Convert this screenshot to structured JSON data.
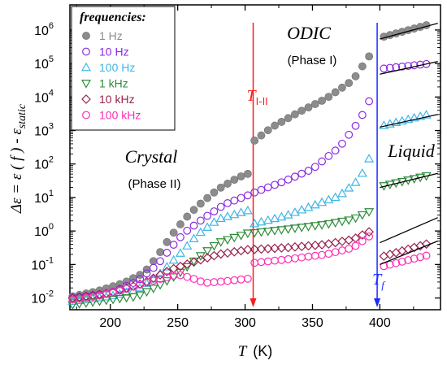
{
  "chart_data": {
    "type": "scatter",
    "xlabel_symbol": "T",
    "xlabel_unit": "(K)",
    "ylabel": "Δε = ε ( f ) - ε",
    "ylabel_sub": "static",
    "xlim": [
      170,
      445
    ],
    "ylim_log10": [
      -2.35,
      6.75
    ],
    "y_scale": "log",
    "x_ticks": [
      200,
      250,
      300,
      350,
      400
    ],
    "y_ticks": [
      {
        "exp": -2,
        "label_base": "10",
        "label_exp": "-2"
      },
      {
        "exp": -1,
        "label_base": "10",
        "label_exp": "-1"
      },
      {
        "exp": 0,
        "label_base": "10",
        "label_exp": "0"
      },
      {
        "exp": 1,
        "label_base": "10",
        "label_exp": "1"
      },
      {
        "exp": 2,
        "label_base": "10",
        "label_exp": "2"
      },
      {
        "exp": 3,
        "label_base": "10",
        "label_exp": "3"
      },
      {
        "exp": 4,
        "label_base": "10",
        "label_exp": "4"
      },
      {
        "exp": 5,
        "label_base": "10",
        "label_exp": "5"
      },
      {
        "exp": 6,
        "label_base": "10",
        "label_exp": "6"
      }
    ],
    "legend_title": "frequencies:",
    "legend_position": "top-left",
    "series": [
      {
        "name": "1 Hz",
        "marker": "filled-circle",
        "color": "#8c8c8c",
        "segments": [
          {
            "x_start": 172,
            "x_end": 303,
            "x_step": 5,
            "curve": [
              [
                172,
                -1.95
              ],
              [
                190,
                -1.8
              ],
              [
                210,
                -1.55
              ],
              [
                225,
                -1.25
              ],
              [
                235,
                -0.75
              ],
              [
                245,
                -0.15
              ],
              [
                255,
                0.35
              ],
              [
                265,
                0.75
              ],
              [
                280,
                1.25
              ],
              [
                295,
                1.6
              ],
              [
                303,
                1.72
              ]
            ]
          },
          {
            "x_start": 307,
            "x_end": 396,
            "x_step": 5,
            "curve": [
              [
                307,
                2.7
              ],
              [
                320,
                3.1
              ],
              [
                340,
                3.55
              ],
              [
                360,
                3.95
              ],
              [
                380,
                4.5
              ],
              [
                396,
                5.45
              ]
            ]
          },
          {
            "x_start": 403,
            "x_end": 438,
            "x_step": 4.5,
            "curve": [
              [
                403,
                5.8
              ],
              [
                438,
                6.18
              ]
            ]
          }
        ]
      },
      {
        "name": "10 Hz",
        "marker": "circle",
        "color": "#8a2be2",
        "segments": [
          {
            "x_start": 172,
            "x_end": 303,
            "x_step": 5,
            "curve": [
              [
                172,
                -2.0
              ],
              [
                200,
                -1.85
              ],
              [
                220,
                -1.5
              ],
              [
                235,
                -1.0
              ],
              [
                245,
                -0.5
              ],
              [
                255,
                -0.05
              ],
              [
                270,
                0.4
              ],
              [
                285,
                0.8
              ],
              [
                303,
                1.08
              ]
            ]
          },
          {
            "x_start": 307,
            "x_end": 396,
            "x_step": 5,
            "curve": [
              [
                307,
                1.15
              ],
              [
                330,
                1.5
              ],
              [
                350,
                1.85
              ],
              [
                370,
                2.5
              ],
              [
                385,
                3.3
              ],
              [
                396,
                4.2
              ]
            ]
          },
          {
            "x_start": 403,
            "x_end": 438,
            "x_step": 4.5,
            "curve": [
              [
                403,
                4.85
              ],
              [
                438,
                5.0
              ]
            ]
          }
        ]
      },
      {
        "name": "100 Hz",
        "marker": "triangle-up",
        "color": "#3fb5e5",
        "segments": [
          {
            "x_start": 172,
            "x_end": 303,
            "x_step": 5,
            "curve": [
              [
                172,
                -2.1
              ],
              [
                200,
                -1.95
              ],
              [
                220,
                -1.75
              ],
              [
                235,
                -1.35
              ],
              [
                250,
                -0.75
              ],
              [
                265,
                -0.1
              ],
              [
                280,
                0.35
              ],
              [
                303,
                0.62
              ]
            ]
          },
          {
            "x_start": 307,
            "x_end": 396,
            "x_step": 5,
            "curve": [
              [
                307,
                0.22
              ],
              [
                330,
                0.45
              ],
              [
                350,
                0.75
              ],
              [
                370,
                1.05
              ],
              [
                385,
                1.55
              ],
              [
                396,
                2.5
              ]
            ]
          },
          {
            "x_start": 403,
            "x_end": 438,
            "x_step": 4.5,
            "curve": [
              [
                403,
                3.15
              ],
              [
                438,
                3.5
              ]
            ]
          }
        ]
      },
      {
        "name": "1 kHz",
        "marker": "triangle-down",
        "color": "#2e8b3a",
        "segments": [
          {
            "x_start": 172,
            "x_end": 303,
            "x_step": 5,
            "curve": [
              [
                172,
                -2.2
              ],
              [
                200,
                -2.05
              ],
              [
                220,
                -1.95
              ],
              [
                235,
                -1.65
              ],
              [
                250,
                -1.3
              ],
              [
                265,
                -0.8
              ],
              [
                280,
                -0.35
              ],
              [
                303,
                -0.05
              ]
            ]
          },
          {
            "x_start": 307,
            "x_end": 396,
            "x_step": 5,
            "curve": [
              [
                307,
                -0.05
              ],
              [
                330,
                0.05
              ],
              [
                360,
                0.2
              ],
              [
                380,
                0.35
              ],
              [
                396,
                0.65
              ]
            ]
          },
          {
            "x_start": 403,
            "x_end": 438,
            "x_step": 4.5,
            "curve": [
              [
                403,
                1.35
              ],
              [
                438,
                1.68
              ]
            ]
          }
        ]
      },
      {
        "name": "10 kHz",
        "marker": "diamond",
        "color": "#99214f",
        "segments": [
          {
            "x_start": 172,
            "x_end": 303,
            "x_step": 5,
            "curve": [
              [
                172,
                -2.0
              ],
              [
                200,
                -1.85
              ],
              [
                225,
                -1.55
              ],
              [
                245,
                -1.15
              ],
              [
                260,
                -0.95
              ],
              [
                280,
                -0.7
              ],
              [
                303,
                -0.55
              ]
            ]
          },
          {
            "x_start": 307,
            "x_end": 396,
            "x_step": 5,
            "curve": [
              [
                307,
                -0.55
              ],
              [
                330,
                -0.5
              ],
              [
                360,
                -0.4
              ],
              [
                380,
                -0.25
              ],
              [
                396,
                0.05
              ]
            ]
          },
          {
            "x_start": 403,
            "x_end": 438,
            "x_step": 4.5,
            "curve": [
              [
                403,
                -0.75
              ],
              [
                438,
                -0.35
              ]
            ]
          }
        ]
      },
      {
        "name": "100 kHz",
        "marker": "circle",
        "color": "#ff2db4",
        "segments": [
          {
            "x_start": 172,
            "x_end": 303,
            "x_step": 5,
            "curve": [
              [
                172,
                -2.05
              ],
              [
                190,
                -1.95
              ],
              [
                210,
                -1.75
              ],
              [
                230,
                -1.5
              ],
              [
                250,
                -1.3
              ],
              [
                260,
                -1.4
              ],
              [
                270,
                -1.55
              ],
              [
                285,
                -1.5
              ],
              [
                303,
                -1.42
              ]
            ]
          },
          {
            "x_start": 307,
            "x_end": 396,
            "x_step": 5,
            "curve": [
              [
                307,
                -0.95
              ],
              [
                330,
                -0.85
              ],
              [
                360,
                -0.7
              ],
              [
                380,
                -0.5
              ],
              [
                396,
                -0.05
              ]
            ]
          },
          {
            "x_start": 403,
            "x_end": 438,
            "x_step": 4.5,
            "curve": [
              [
                403,
                -1.05
              ],
              [
                438,
                -0.7
              ]
            ]
          }
        ]
      }
    ],
    "fit_lines": [
      {
        "x": [
          400,
          443
        ],
        "log10y": [
          5.73,
          6.2
        ]
      },
      {
        "x": [
          400,
          443
        ],
        "log10y": [
          4.68,
          5.06
        ]
      },
      {
        "x": [
          400,
          443
        ],
        "log10y": [
          3.1,
          3.48
        ]
      },
      {
        "x": [
          400,
          443
        ],
        "log10y": [
          1.3,
          1.72
        ]
      },
      {
        "x": [
          400,
          443
        ],
        "log10y": [
          -0.35,
          0.4
        ]
      },
      {
        "x": [
          400,
          443
        ],
        "log10y": [
          -1.0,
          -0.3
        ]
      }
    ],
    "annotations": {
      "transition_II_I": {
        "x": 306,
        "label": "T",
        "label_sub": "I-II",
        "color": "#ff1a1a"
      },
      "melting": {
        "x": 398,
        "label": "T",
        "label_sub": "f",
        "color": "#1a2bff"
      },
      "odic": "ODIC",
      "phase_one": "(Phase I)",
      "crystal": "Crystal",
      "phase_two": "(Phase II)",
      "liquid": "Liquid"
    }
  }
}
